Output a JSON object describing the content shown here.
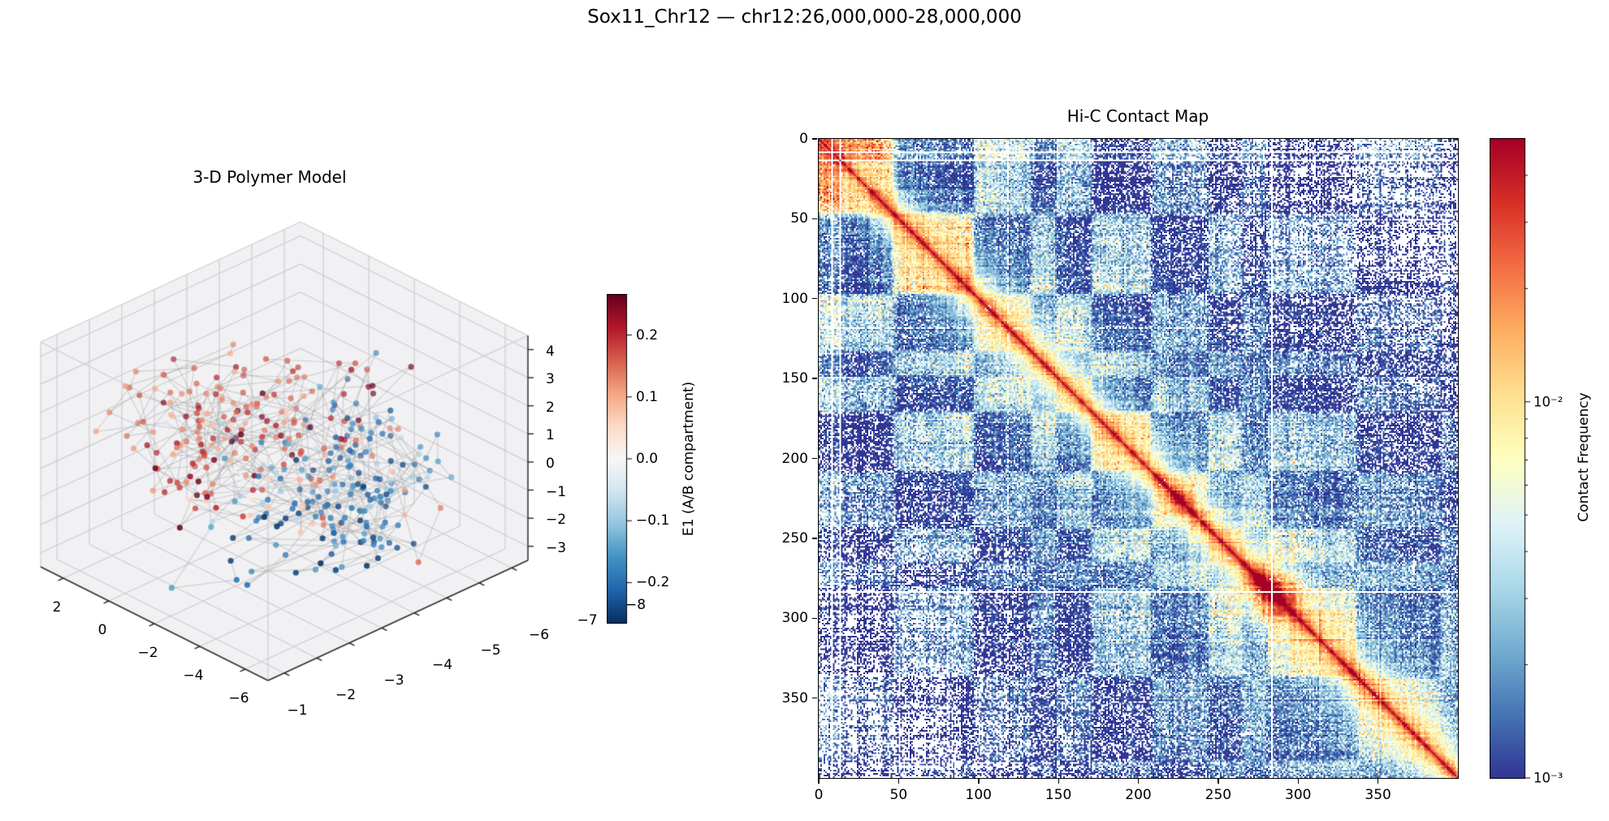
{
  "figure": {
    "title": "Sox11_Chr12 — chr12:26,000,000-28,000,000"
  },
  "chart_data": [
    {
      "id": "polymer3d",
      "type": "scatter",
      "projection": "3d",
      "title": "3-D Polymer Model",
      "n_points": 400,
      "points_colored_by": "E1 (A/B compartment)",
      "marker_colormap": "RdBu_r",
      "chain_edges": "consecutive monomers connected by faint gray lines",
      "x_range": [
        -7,
        3
      ],
      "y_range": [
        -8.5,
        -0.5
      ],
      "z_range": [
        -3.5,
        4.5
      ],
      "x_tick_values": [
        2,
        0,
        -2,
        -4,
        -6
      ],
      "x_tick_labels": [
        "2",
        "0",
        "−2",
        "−4",
        "−6"
      ],
      "y_tick_values": [
        -1,
        -2,
        -3,
        -4,
        -5,
        -6,
        -7,
        -8
      ],
      "y_tick_labels": [
        "−1",
        "−2",
        "−3",
        "−4",
        "−5",
        "−6",
        "−7",
        "−8"
      ],
      "z_tick_values": [
        4,
        3,
        2,
        1,
        0,
        -1,
        -2,
        -3
      ],
      "z_tick_labels": [
        "4",
        "3",
        "2",
        "1",
        "0",
        "−1",
        "−2",
        "−3"
      ],
      "grid": true,
      "colorbar": {
        "label": "E1 (A/B compartment)",
        "tick_values": [
          0.2,
          0.1,
          0.0,
          -0.1,
          -0.2
        ],
        "tick_labels": [
          "0.2",
          "0.1",
          "0.0",
          "−0.1",
          "−0.2"
        ],
        "vmin": -0.265,
        "vmax": 0.265,
        "colormap": "RdBu_r"
      }
    },
    {
      "id": "hic",
      "type": "heatmap",
      "title": "Hi-C Contact Map",
      "n_bins": 400,
      "x_tick_values": [
        0,
        50,
        100,
        150,
        200,
        250,
        300,
        350
      ],
      "x_tick_labels": [
        "0",
        "50",
        "100",
        "150",
        "200",
        "250",
        "300",
        "350"
      ],
      "y_tick_values": [
        0,
        50,
        100,
        150,
        200,
        250,
        300,
        350
      ],
      "y_tick_labels": [
        "0",
        "50",
        "100",
        "150",
        "200",
        "250",
        "300",
        "350"
      ],
      "colormap": "RdYlBu_r",
      "norm": "log",
      "vmin": 0.001,
      "vmax": 0.05,
      "diagonal": "strong red main diagonal with distance-decay halo",
      "masked_white_bins": [
        8,
        13,
        283
      ],
      "faint_masked_bins": [
        118
      ],
      "enhanced_diagonal_bins": [
        225,
        283
      ],
      "colorbar": {
        "label": "Contact Frequency",
        "tick_values": [
          0.01,
          0.001
        ],
        "tick_labels": [
          "10⁻²",
          "10⁻³"
        ],
        "scale": "log",
        "colormap": "RdYlBu_r"
      }
    }
  ],
  "colors": {
    "background": "#ffffff",
    "text": "#000000",
    "pane_fill": "#f1f1f3",
    "grid_line": "#cdcdd1",
    "axis_line": "#2a2a2a",
    "chain_edge": "rgba(150,150,150,0.30)",
    "masked_cell": "#ffffff",
    "RdBu_r": [
      "#053061",
      "#2166ac",
      "#4393c3",
      "#92c5de",
      "#d1e5f0",
      "#f7f7f7",
      "#fddbc7",
      "#f4a582",
      "#d6604d",
      "#b2182b",
      "#67001f"
    ],
    "RdYlBu_r": [
      "#313695",
      "#4575b4",
      "#74add1",
      "#abd9e9",
      "#e0f3f8",
      "#ffffbf",
      "#fee090",
      "#fdae61",
      "#f46d43",
      "#d73027",
      "#a50026"
    ]
  }
}
